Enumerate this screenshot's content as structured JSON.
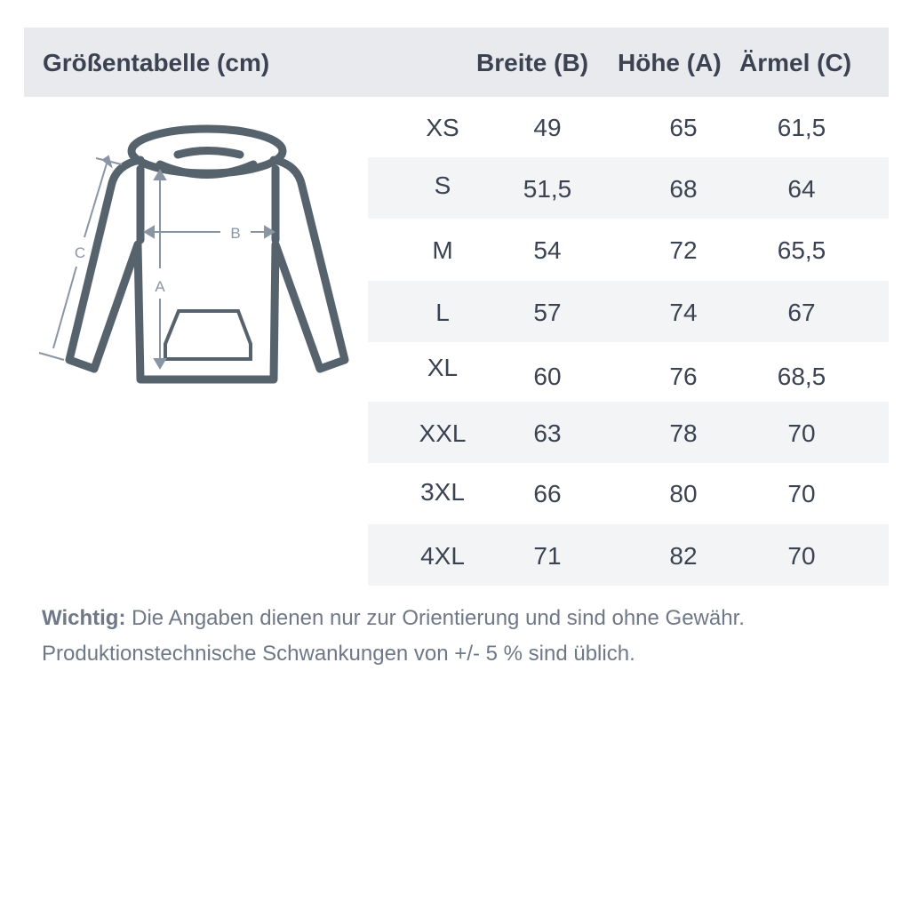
{
  "header": {
    "title": "Größentabelle (cm)",
    "columns": [
      "Breite (B)",
      "Höhe (A)",
      "Ärmel (C)"
    ]
  },
  "diagram": {
    "labels": {
      "width": "B",
      "height": "A",
      "sleeve": "C"
    },
    "icon": "hoodie-icon"
  },
  "rows": [
    {
      "size": "XS",
      "breite": "49",
      "hoehe": "65",
      "aermel": "61,5"
    },
    {
      "size": "S",
      "breite": "51,5",
      "hoehe": "68",
      "aermel": "64"
    },
    {
      "size": "M",
      "breite": "54",
      "hoehe": "72",
      "aermel": "65,5"
    },
    {
      "size": "L",
      "breite": "57",
      "hoehe": "74",
      "aermel": "67"
    },
    {
      "size": "XL",
      "breite": "60",
      "hoehe": "76",
      "aermel": "68,5"
    },
    {
      "size": "XXL",
      "breite": "63",
      "hoehe": "78",
      "aermel": "70"
    },
    {
      "size": "3XL",
      "breite": "66",
      "hoehe": "80",
      "aermel": "70"
    },
    {
      "size": "4XL",
      "breite": "71",
      "hoehe": "82",
      "aermel": "70"
    }
  ],
  "note": {
    "label": "Wichtig:",
    "line1": "Die Angaben dienen nur zur Orientierung und sind ohne Gewähr.",
    "line2": "Produktionstechnische Schwankungen von +/- 5 % sind üblich."
  },
  "colors": {
    "header_bg": "#e9eaee",
    "stripe": "#f3f4f6",
    "text": "#3b4352",
    "outline": "#56636d",
    "arrows": "#8a95a3"
  }
}
